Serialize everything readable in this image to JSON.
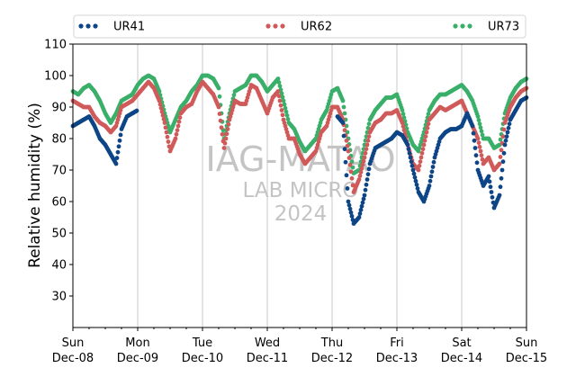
{
  "chart_data": {
    "type": "scatter",
    "xlabel": "",
    "ylabel": "Relative humidity (%)",
    "ylim": [
      20,
      110
    ],
    "xlim": [
      "2024-12-08 00:00",
      "2024-12-15 00:00"
    ],
    "yticks": [
      "30",
      "40",
      "50",
      "60",
      "70",
      "80",
      "90",
      "100",
      "110"
    ],
    "xticks": [
      {
        "day": "Sun",
        "date": "Dec-08"
      },
      {
        "day": "Mon",
        "date": "Dec-09"
      },
      {
        "day": "Tue",
        "date": "Dec-10"
      },
      {
        "day": "Wed",
        "date": "Dec-11"
      },
      {
        "day": "Thu",
        "date": "Dec-12"
      },
      {
        "day": "Fri",
        "date": "Dec-13"
      },
      {
        "day": "Sat",
        "date": "Dec-14"
      },
      {
        "day": "Sun",
        "date": "Dec-15"
      }
    ],
    "grid": "vertical",
    "legend_position": "top",
    "watermark": [
      "IAG-MATAO",
      "LAB MICRO",
      "2024"
    ],
    "series": [
      {
        "name": "UR41",
        "color": "#0d4586",
        "x_hours": [
          0,
          2,
          4,
          6,
          8,
          10,
          12,
          14,
          16,
          18,
          20,
          22,
          24,
          48,
          72,
          96,
          98,
          100,
          102,
          104,
          106,
          108,
          110,
          112,
          114,
          116,
          118,
          120,
          122,
          124,
          126,
          128,
          130,
          132,
          134,
          136,
          138,
          140,
          142,
          144,
          146,
          148,
          150,
          152,
          154,
          156,
          158,
          160,
          162,
          164,
          166,
          168
        ],
        "values": [
          84,
          85,
          86,
          87,
          84,
          80,
          78,
          75,
          72,
          83,
          87,
          88,
          89,
          null,
          null,
          null,
          87,
          85,
          60,
          53,
          55,
          62,
          72,
          77,
          78,
          79,
          80,
          82,
          81,
          78,
          70,
          63,
          60,
          65,
          74,
          80,
          82,
          83,
          83,
          84,
          88,
          84,
          70,
          65,
          68,
          58,
          62,
          78,
          86,
          89,
          92,
          93
        ]
      },
      {
        "name": "UR62",
        "color": "#d05a5a",
        "x_hours": [
          0,
          2,
          4,
          6,
          8,
          10,
          12,
          14,
          16,
          18,
          20,
          22,
          24,
          26,
          28,
          30,
          32,
          34,
          36,
          38,
          40,
          42,
          44,
          46,
          48,
          50,
          52,
          54,
          56,
          58,
          60,
          62,
          64,
          66,
          68,
          70,
          72,
          74,
          76,
          78,
          80,
          82,
          84,
          86,
          88,
          90,
          92,
          94,
          96,
          98,
          100,
          102,
          104,
          106,
          108,
          110,
          112,
          114,
          116,
          118,
          120,
          122,
          124,
          126,
          128,
          130,
          132,
          134,
          136,
          138,
          140,
          142,
          144,
          146,
          148,
          150,
          152,
          154,
          156,
          158,
          160,
          162,
          164,
          166,
          168
        ],
        "values": [
          92,
          91,
          90,
          90,
          87,
          85,
          84,
          82,
          84,
          90,
          91,
          92,
          94,
          96,
          98,
          96,
          92,
          85,
          76,
          80,
          88,
          90,
          91,
          95,
          98,
          96,
          94,
          90,
          77,
          86,
          92,
          91,
          91,
          97,
          96,
          92,
          88,
          93,
          95,
          86,
          80,
          80,
          75,
          72,
          74,
          76,
          82,
          84,
          90,
          90,
          86,
          76,
          63,
          67,
          74,
          82,
          85,
          86,
          88,
          88,
          89,
          85,
          78,
          72,
          70,
          78,
          86,
          88,
          90,
          89,
          90,
          91,
          92,
          88,
          84,
          80,
          72,
          74,
          70,
          72,
          85,
          90,
          93,
          95,
          96
        ]
      },
      {
        "name": "UR73",
        "color": "#3aaf6a",
        "x_hours": [
          0,
          2,
          4,
          6,
          8,
          10,
          12,
          14,
          16,
          18,
          20,
          22,
          24,
          26,
          28,
          30,
          32,
          34,
          36,
          38,
          40,
          42,
          44,
          46,
          48,
          50,
          52,
          54,
          56,
          58,
          60,
          62,
          64,
          66,
          68,
          70,
          72,
          74,
          76,
          78,
          80,
          82,
          84,
          86,
          88,
          90,
          92,
          94,
          96,
          98,
          100,
          102,
          104,
          106,
          108,
          110,
          112,
          114,
          116,
          118,
          120,
          122,
          124,
          126,
          128,
          130,
          132,
          134,
          136,
          138,
          140,
          142,
          144,
          146,
          148,
          150,
          152,
          154,
          156,
          158,
          160,
          162,
          164,
          166,
          168
        ],
        "values": [
          95,
          94,
          96,
          97,
          95,
          92,
          88,
          85,
          88,
          92,
          93,
          94,
          97,
          99,
          100,
          99,
          95,
          88,
          82,
          86,
          90,
          92,
          95,
          97,
          100,
          100,
          99,
          96,
          80,
          88,
          95,
          96,
          97,
          100,
          100,
          98,
          95,
          97,
          99,
          92,
          85,
          83,
          79,
          76,
          78,
          80,
          86,
          89,
          95,
          96,
          92,
          80,
          69,
          70,
          78,
          86,
          89,
          91,
          93,
          93,
          94,
          89,
          82,
          78,
          76,
          82,
          89,
          92,
          94,
          94,
          95,
          96,
          97,
          95,
          92,
          87,
          80,
          80,
          77,
          78,
          88,
          93,
          96,
          98,
          99
        ]
      }
    ]
  }
}
